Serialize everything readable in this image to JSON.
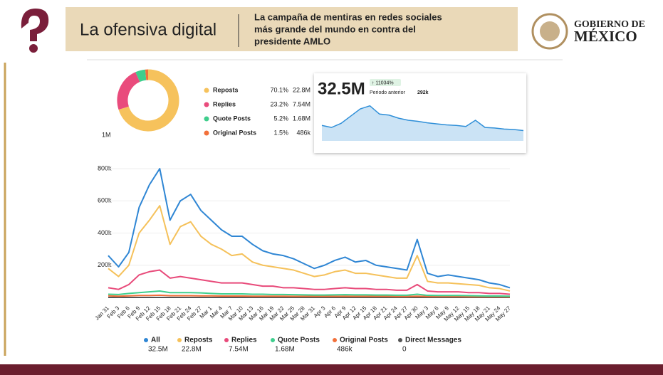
{
  "header": {
    "title": "La ofensiva digital",
    "subtitle_lines": [
      "La campaña de mentiras en redes sociales",
      "más grande del mundo en contra del",
      "presidente AMLO"
    ],
    "logo_lines": [
      "GOBIERNO DE",
      "MÉXICO"
    ]
  },
  "chart_data": [
    {
      "type": "pie",
      "categories": [
        "Reposts",
        "Replies",
        "Quote Posts",
        "Original Posts"
      ],
      "values": [
        70.1,
        23.2,
        5.2,
        1.5
      ],
      "value_labels": [
        "70.1%",
        "23.2%",
        "5.2%",
        "1.5%"
      ],
      "totals": [
        "22.8M",
        "7.54M",
        "1.68M",
        "486k"
      ],
      "colors": [
        "#f6c25c",
        "#e94b7c",
        "#3fce8c",
        "#f2703a"
      ],
      "annotation": "1M"
    },
    {
      "type": "sparkline",
      "title": "32.5M",
      "badge": "↑ 11034%",
      "note": "Periodo anterior",
      "previous": "292k",
      "values": [
        30,
        26,
        34,
        48,
        62,
        68,
        52,
        50,
        44,
        40,
        38,
        35,
        33,
        31,
        30,
        28,
        40,
        26,
        25,
        23,
        22,
        20
      ],
      "ylim": [
        0,
        80
      ],
      "color": "#2f8fd8"
    },
    {
      "type": "line",
      "categories": [
        "Jan 31",
        "Feb 3",
        "Feb 6",
        "Feb 9",
        "Feb 12",
        "Feb 15",
        "Feb 18",
        "Feb 21",
        "Feb 24",
        "Feb 27",
        "Mar 1",
        "Mar 4",
        "Mar 7",
        "Mar 10",
        "Mar 13",
        "Mar 16",
        "Mar 19",
        "Mar 22",
        "Mar 25",
        "Mar 28",
        "Mar 31",
        "Apr 3",
        "Apr 6",
        "Apr 9",
        "Apr 12",
        "Apr 15",
        "Apr 18",
        "Apr 21",
        "Apr 24",
        "Apr 27",
        "Apr 30",
        "May 3",
        "May 6",
        "May 9",
        "May 12",
        "May 15",
        "May 18",
        "May 21",
        "May 24",
        "May 27"
      ],
      "ylim": [
        0,
        800000
      ],
      "yticks": [
        {
          "value": 200000,
          "label": "200k"
        },
        {
          "value": 400000,
          "label": "400k"
        },
        {
          "value": 600000,
          "label": "600k"
        },
        {
          "value": 800000,
          "label": "800k"
        }
      ],
      "series": [
        {
          "name": "All",
          "total": "32.5M",
          "color": "#2f86d4",
          "values": [
            260000,
            190000,
            280000,
            560000,
            700000,
            800000,
            480000,
            600000,
            640000,
            540000,
            480000,
            420000,
            380000,
            380000,
            330000,
            290000,
            270000,
            260000,
            240000,
            210000,
            180000,
            200000,
            230000,
            250000,
            220000,
            230000,
            200000,
            190000,
            180000,
            170000,
            360000,
            150000,
            130000,
            140000,
            130000,
            120000,
            110000,
            90000,
            80000,
            60000
          ]
        },
        {
          "name": "Reposts",
          "total": "22.8M",
          "color": "#f5c15a",
          "values": [
            180000,
            130000,
            200000,
            400000,
            480000,
            570000,
            330000,
            440000,
            470000,
            380000,
            330000,
            300000,
            260000,
            270000,
            220000,
            200000,
            190000,
            180000,
            170000,
            150000,
            130000,
            140000,
            160000,
            170000,
            150000,
            150000,
            140000,
            130000,
            120000,
            120000,
            260000,
            100000,
            90000,
            90000,
            85000,
            80000,
            75000,
            60000,
            55000,
            40000
          ]
        },
        {
          "name": "Replies",
          "total": "7.54M",
          "color": "#e84a7a",
          "values": [
            60000,
            50000,
            80000,
            140000,
            160000,
            170000,
            120000,
            130000,
            120000,
            110000,
            100000,
            90000,
            90000,
            90000,
            80000,
            70000,
            70000,
            60000,
            60000,
            55000,
            50000,
            50000,
            55000,
            60000,
            55000,
            55000,
            50000,
            50000,
            45000,
            45000,
            80000,
            40000,
            35000,
            35000,
            35000,
            30000,
            30000,
            25000,
            25000,
            20000
          ]
        },
        {
          "name": "Quote Posts",
          "total": "1.68M",
          "color": "#3fcf8e",
          "values": [
            20000,
            18000,
            25000,
            30000,
            35000,
            40000,
            30000,
            30000,
            30000,
            28000,
            25000,
            22000,
            22000,
            22000,
            20000,
            20000,
            18000,
            18000,
            17000,
            16000,
            15000,
            15000,
            16000,
            17000,
            16000,
            16000,
            15000,
            15000,
            14000,
            14000,
            20000,
            13000,
            12000,
            12000,
            12000,
            11000,
            10000,
            9000,
            9000,
            8000
          ]
        },
        {
          "name": "Original Posts",
          "total": "486k",
          "color": "#f2703a",
          "values": [
            10000,
            8000,
            10000,
            12000,
            12000,
            14000,
            11000,
            11000,
            11000,
            10000,
            10000,
            9000,
            9000,
            9000,
            8000,
            8000,
            8000,
            8000,
            7000,
            7000,
            7000,
            7000,
            7000,
            8000,
            7000,
            7000,
            7000,
            7000,
            6000,
            6000,
            8000,
            6000,
            6000,
            6000,
            6000,
            5000,
            5000,
            5000,
            5000,
            4000
          ]
        },
        {
          "name": "Direct Messages",
          "total": "0",
          "color": "#555555",
          "values": [
            0,
            0,
            0,
            0,
            0,
            0,
            0,
            0,
            0,
            0,
            0,
            0,
            0,
            0,
            0,
            0,
            0,
            0,
            0,
            0,
            0,
            0,
            0,
            0,
            0,
            0,
            0,
            0,
            0,
            0,
            0,
            0,
            0,
            0,
            0,
            0,
            0,
            0,
            0,
            0
          ]
        }
      ]
    }
  ]
}
